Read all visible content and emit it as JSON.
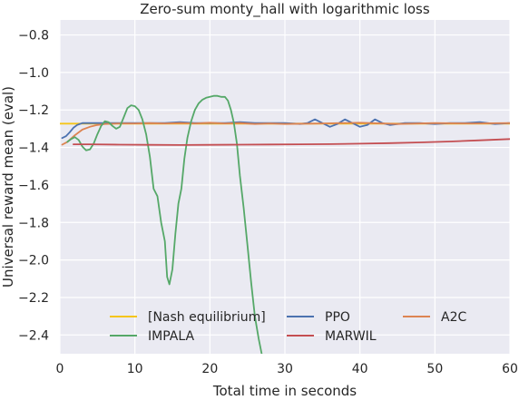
{
  "chart_data": {
    "type": "line",
    "title": "Zero-sum monty_hall with logarithmic loss",
    "xlabel": "Total time in seconds",
    "ylabel": "Universal reward mean (eval)",
    "xlim": [
      0,
      60
    ],
    "ylim": [
      -2.5,
      -0.72
    ],
    "xticks": [
      0,
      10,
      20,
      30,
      40,
      50,
      60
    ],
    "xtick_labels": [
      "0",
      "10",
      "20",
      "30",
      "40",
      "50",
      "60"
    ],
    "yticks": [
      -0.8,
      -1.0,
      -1.2,
      -1.4,
      -1.6,
      -1.8,
      -2.0,
      -2.2,
      -2.4
    ],
    "ytick_labels": [
      "−0.8",
      "−1.0",
      "−1.2",
      "−1.4",
      "−1.6",
      "−1.8",
      "−2.0",
      "−2.2",
      "−2.4"
    ],
    "grid": true,
    "legend_position": "lower-center",
    "legend_columns": 3,
    "series": [
      {
        "name": "[Nash equilibrium]",
        "color": "#f5c518",
        "x": [
          0,
          60
        ],
        "y": [
          -1.273,
          -1.273
        ]
      },
      {
        "name": "PPO",
        "color": "#4c72b0",
        "x": [
          0.3,
          0.8,
          1.3,
          1.8,
          2.3,
          3.0,
          4.0,
          6.0,
          8.0,
          10.0,
          12.0,
          14.0,
          16.0,
          18.0,
          20.0,
          22.0,
          24.0,
          26.0,
          28.0,
          30.0,
          32.0,
          33.0,
          34.0,
          35.0,
          36.0,
          37.0,
          38.0,
          39.0,
          40.0,
          41.0,
          42.0,
          43.0,
          44.0,
          46.0,
          48.0,
          50.0,
          52.0,
          54.0,
          56.0,
          58.0,
          60.0
        ],
        "y": [
          -1.35,
          -1.34,
          -1.32,
          -1.295,
          -1.28,
          -1.27,
          -1.27,
          -1.27,
          -1.27,
          -1.27,
          -1.27,
          -1.27,
          -1.265,
          -1.27,
          -1.27,
          -1.27,
          -1.265,
          -1.27,
          -1.27,
          -1.27,
          -1.275,
          -1.27,
          -1.25,
          -1.27,
          -1.29,
          -1.275,
          -1.25,
          -1.27,
          -1.29,
          -1.28,
          -1.25,
          -1.27,
          -1.28,
          -1.27,
          -1.27,
          -1.275,
          -1.27,
          -1.27,
          -1.265,
          -1.275,
          -1.27
        ]
      },
      {
        "name": "A2C",
        "color": "#dd8452",
        "x": [
          0.3,
          1.0,
          2.0,
          3.0,
          4.0,
          5.0,
          6.0,
          8.0,
          10.0,
          12.0,
          14.0,
          16.0,
          18.0,
          20.0,
          22.0,
          24.0,
          26.0,
          28.0,
          30.0,
          35.0,
          40.0,
          45.0,
          50.0,
          55.0,
          60.0
        ],
        "y": [
          -1.385,
          -1.37,
          -1.335,
          -1.305,
          -1.29,
          -1.28,
          -1.275,
          -1.272,
          -1.272,
          -1.27,
          -1.272,
          -1.27,
          -1.272,
          -1.268,
          -1.272,
          -1.27,
          -1.275,
          -1.272,
          -1.275,
          -1.272,
          -1.268,
          -1.275,
          -1.27,
          -1.272,
          -1.27
        ]
      },
      {
        "name": "IMPALA",
        "color": "#55a868",
        "x": [
          1.0,
          1.5,
          2.0,
          2.5,
          3.0,
          3.5,
          4.0,
          4.5,
          5.0,
          5.5,
          6.0,
          6.5,
          7.0,
          7.5,
          8.0,
          8.5,
          9.0,
          9.5,
          10.0,
          10.5,
          11.0,
          11.5,
          12.0,
          12.5,
          13.0,
          13.5,
          14.0,
          14.3,
          14.6,
          15.0,
          15.4,
          15.8,
          16.2,
          16.6,
          17.0,
          17.5,
          18.0,
          18.5,
          19.0,
          19.5,
          20.0,
          20.5,
          21.0,
          21.5,
          22.0,
          22.4,
          22.8,
          23.2,
          23.6,
          24.0,
          24.5,
          25.0,
          25.5,
          26.0,
          26.5,
          26.9
        ],
        "y": [
          -1.37,
          -1.355,
          -1.345,
          -1.36,
          -1.395,
          -1.415,
          -1.41,
          -1.38,
          -1.33,
          -1.285,
          -1.26,
          -1.265,
          -1.285,
          -1.3,
          -1.29,
          -1.24,
          -1.19,
          -1.175,
          -1.18,
          -1.2,
          -1.25,
          -1.33,
          -1.45,
          -1.62,
          -1.66,
          -1.8,
          -1.9,
          -2.09,
          -2.13,
          -2.05,
          -1.86,
          -1.7,
          -1.62,
          -1.46,
          -1.35,
          -1.26,
          -1.2,
          -1.165,
          -1.145,
          -1.135,
          -1.13,
          -1.125,
          -1.125,
          -1.13,
          -1.13,
          -1.15,
          -1.2,
          -1.27,
          -1.38,
          -1.55,
          -1.72,
          -1.92,
          -2.12,
          -2.3,
          -2.42,
          -2.5
        ]
      },
      {
        "name": "MARWIL",
        "color": "#c44e52",
        "x": [
          1.8,
          4.0,
          8.0,
          12.0,
          16.0,
          20.0,
          24.0,
          28.0,
          32.0,
          36.0,
          40.0,
          44.0,
          48.0,
          52.0,
          56.0,
          60.0
        ],
        "y": [
          -1.383,
          -1.383,
          -1.385,
          -1.386,
          -1.387,
          -1.386,
          -1.385,
          -1.384,
          -1.383,
          -1.382,
          -1.38,
          -1.377,
          -1.373,
          -1.368,
          -1.362,
          -1.355
        ]
      }
    ]
  }
}
